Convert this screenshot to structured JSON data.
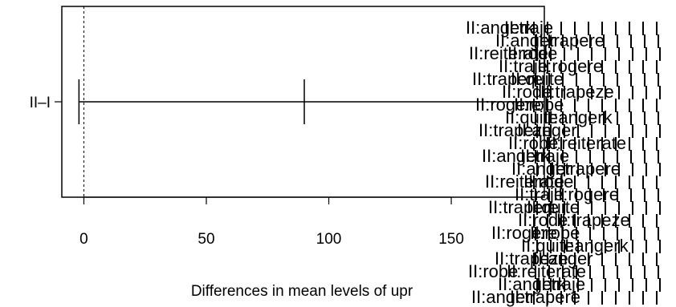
{
  "chart_data": {
    "type": "interval",
    "xlabel": "Differences in mean levels of upr",
    "xlim": [
      -9,
      188
    ],
    "xticks": [
      0,
      50,
      100,
      150
    ],
    "categories": [
      "II–I"
    ],
    "intervals": [
      {
        "label": "II–I",
        "lower": -2,
        "estimate": 90,
        "upper": 188
      }
    ],
    "reference_line": 0,
    "overlapping_labels": [
      "II:angerk",
      "II:anger",
      "II:reiterate",
      "II:traje",
      "II:trapere",
      "II:rode",
      "II:rogere",
      "II:quite",
      "II:trapeze",
      "II:robe"
    ]
  }
}
